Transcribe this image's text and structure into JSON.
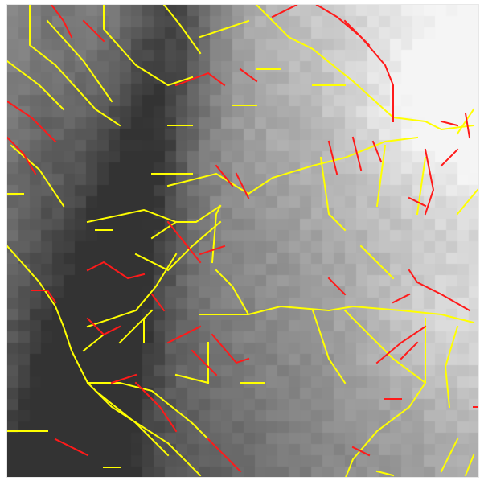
{
  "image": {
    "kind": "terrain-raster-with-drainage-overlay",
    "palette": {
      "background": "#ffffff",
      "terrain_dark": "#3a3a3a",
      "terrain_light": "#f2f2f2",
      "channel_primary": "#ffff00",
      "channel_secondary": "#ff1a1a"
    },
    "icons": [
      "terrain-grid",
      "yellow-drainage-lines",
      "red-drainage-lines"
    ]
  }
}
